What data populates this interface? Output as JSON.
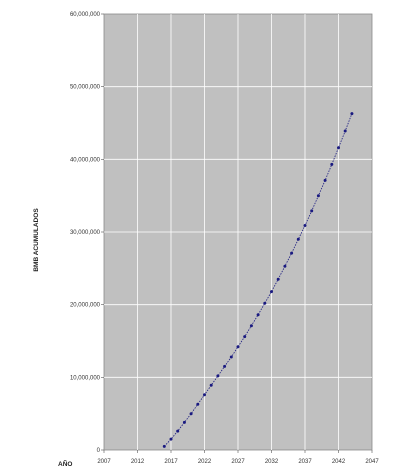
{
  "chart_data": {
    "type": "line",
    "title": "",
    "xlabel": "AÑO",
    "ylabel": "BMB ACUMULADOS",
    "x_ticks": [
      2007,
      2012,
      2017,
      2022,
      2027,
      2032,
      2037,
      2042,
      2047
    ],
    "y_ticks": [
      "0",
      "10,000,000",
      "20,000,000",
      "30,000,000",
      "40,000,000",
      "50,000,000",
      "60,000,000"
    ],
    "xlim": [
      2007,
      2047
    ],
    "ylim": [
      0,
      60000000
    ],
    "grid": true,
    "colors": {
      "plot_bg": "#c0c0c0",
      "grid": "#ffffff",
      "series": "#1a1a80"
    },
    "series": [
      {
        "x": [
          2016,
          2017,
          2018,
          2019,
          2020,
          2021,
          2022,
          2023,
          2024,
          2025,
          2026,
          2027,
          2028,
          2029,
          2030,
          2031,
          2032,
          2033,
          2034,
          2035,
          2036,
          2037,
          2038,
          2039,
          2040,
          2041,
          2042,
          2043,
          2044
        ],
        "y": [
          500000,
          1500000,
          2600000,
          3800000,
          5000000,
          6300000,
          7600000,
          8900000,
          10200000,
          11500000,
          12800000,
          14200000,
          15600000,
          17100000,
          18600000,
          20200000,
          21800000,
          23500000,
          25300000,
          27100000,
          29000000,
          30900000,
          32900000,
          35000000,
          37100000,
          39300000,
          41600000,
          43900000,
          46300000
        ]
      }
    ]
  }
}
